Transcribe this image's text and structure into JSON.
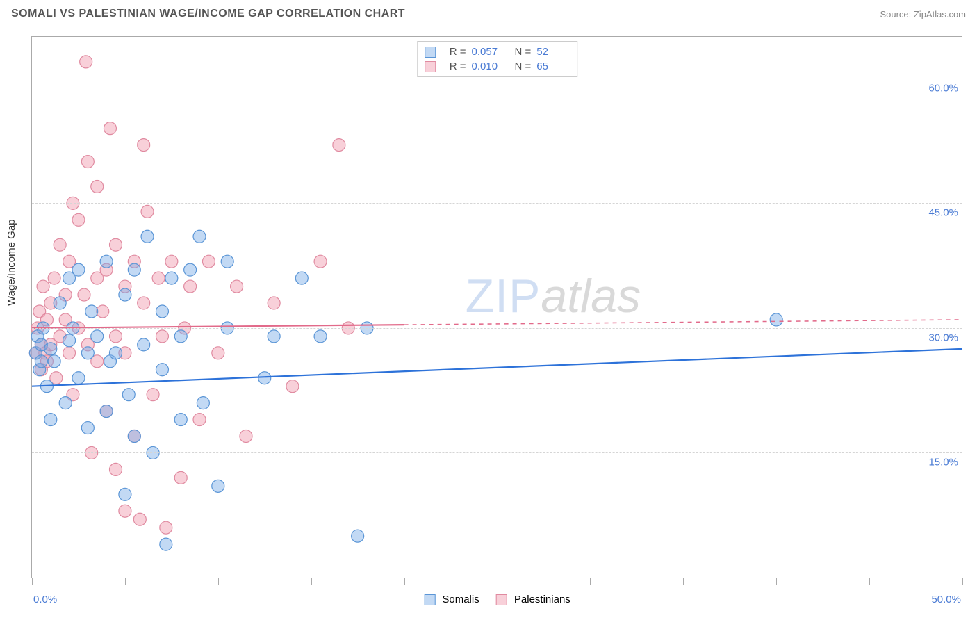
{
  "title": "SOMALI VS PALESTINIAN WAGE/INCOME GAP CORRELATION CHART",
  "source": "Source: ZipAtlas.com",
  "ylabel": "Wage/Income Gap",
  "watermark": {
    "part1": "ZIP",
    "part2": "atlas"
  },
  "colors": {
    "series_a_fill": "rgba(120,170,230,0.45)",
    "series_a_stroke": "#5a95d6",
    "series_b_fill": "rgba(240,150,170,0.45)",
    "series_b_stroke": "#e08aa0",
    "line_a": "#2d72d9",
    "line_b": "#e26a8a",
    "axis_value": "#4a7bd4",
    "grid": "#d5d5d5",
    "border": "#aaaaaa",
    "background": "#ffffff"
  },
  "axes": {
    "xlim": [
      0,
      50
    ],
    "ylim": [
      0,
      65
    ],
    "xticks_pct": [
      0,
      10,
      20,
      30,
      40,
      50,
      60,
      70,
      80,
      90,
      100
    ],
    "yticks": [
      {
        "value": 15,
        "label": "15.0%"
      },
      {
        "value": 30,
        "label": "30.0%"
      },
      {
        "value": 45,
        "label": "45.0%"
      },
      {
        "value": 60,
        "label": "60.0%"
      }
    ],
    "x_min_label": "0.0%",
    "x_max_label": "50.0%"
  },
  "top_legend": {
    "rows": [
      {
        "swatch": "a",
        "r_label": "R =",
        "r": "0.057",
        "n_label": "N =",
        "n": "52"
      },
      {
        "swatch": "b",
        "r_label": "R =",
        "r": "0.010",
        "n_label": "N =",
        "n": "65"
      }
    ]
  },
  "bottom_legend": {
    "a_label": "Somalis",
    "b_label": "Palestinians"
  },
  "regression": {
    "a": {
      "y_at_x0": 23.0,
      "y_at_x50": 27.5,
      "solid_until_x": 50
    },
    "b": {
      "y_at_x0": 30.0,
      "y_at_x50": 31.0,
      "solid_until_x": 20
    }
  },
  "marker": {
    "radius": 9,
    "stroke_width": 1.2
  },
  "line_width": 2.2,
  "series_a_points": [
    [
      0.2,
      27
    ],
    [
      0.3,
      29
    ],
    [
      0.4,
      25
    ],
    [
      0.5,
      26
    ],
    [
      0.5,
      28
    ],
    [
      0.6,
      30
    ],
    [
      0.8,
      23
    ],
    [
      1.0,
      27.5
    ],
    [
      1.0,
      19
    ],
    [
      1.2,
      26
    ],
    [
      1.5,
      33
    ],
    [
      1.8,
      21
    ],
    [
      2.0,
      28.5
    ],
    [
      2.0,
      36
    ],
    [
      2.2,
      30
    ],
    [
      2.5,
      37
    ],
    [
      2.5,
      24
    ],
    [
      3.0,
      18
    ],
    [
      3.0,
      27
    ],
    [
      3.2,
      32
    ],
    [
      3.5,
      29
    ],
    [
      4.0,
      38
    ],
    [
      4.0,
      20
    ],
    [
      4.2,
      26
    ],
    [
      4.5,
      27
    ],
    [
      5.0,
      10
    ],
    [
      5.0,
      34
    ],
    [
      5.2,
      22
    ],
    [
      5.5,
      37
    ],
    [
      5.5,
      17
    ],
    [
      6.0,
      28
    ],
    [
      6.2,
      41
    ],
    [
      6.5,
      15
    ],
    [
      7.0,
      25
    ],
    [
      7.0,
      32
    ],
    [
      7.2,
      4
    ],
    [
      7.5,
      36
    ],
    [
      8.0,
      19
    ],
    [
      8.0,
      29
    ],
    [
      8.5,
      37
    ],
    [
      9.0,
      41
    ],
    [
      9.2,
      21
    ],
    [
      10.0,
      11
    ],
    [
      10.5,
      30
    ],
    [
      10.5,
      38
    ],
    [
      12.5,
      24
    ],
    [
      13.0,
      29
    ],
    [
      14.5,
      36
    ],
    [
      15.5,
      29
    ],
    [
      17.5,
      5
    ],
    [
      18.0,
      30
    ],
    [
      40.0,
      31
    ]
  ],
  "series_b_points": [
    [
      0.2,
      27
    ],
    [
      0.3,
      30
    ],
    [
      0.4,
      32
    ],
    [
      0.5,
      25
    ],
    [
      0.5,
      28
    ],
    [
      0.6,
      35
    ],
    [
      0.7,
      27
    ],
    [
      0.8,
      31
    ],
    [
      0.8,
      26
    ],
    [
      1.0,
      28
    ],
    [
      1.0,
      33
    ],
    [
      1.2,
      36
    ],
    [
      1.3,
      24
    ],
    [
      1.5,
      29
    ],
    [
      1.5,
      40
    ],
    [
      1.8,
      31
    ],
    [
      1.8,
      34
    ],
    [
      2.0,
      27
    ],
    [
      2.0,
      38
    ],
    [
      2.2,
      45
    ],
    [
      2.2,
      22
    ],
    [
      2.5,
      30
    ],
    [
      2.5,
      43
    ],
    [
      2.8,
      34
    ],
    [
      2.9,
      62
    ],
    [
      3.0,
      28
    ],
    [
      3.0,
      50
    ],
    [
      3.2,
      15
    ],
    [
      3.5,
      36
    ],
    [
      3.5,
      26
    ],
    [
      3.5,
      47
    ],
    [
      3.8,
      32
    ],
    [
      4.0,
      20
    ],
    [
      4.0,
      37
    ],
    [
      4.2,
      54
    ],
    [
      4.5,
      29
    ],
    [
      4.5,
      40
    ],
    [
      4.5,
      13
    ],
    [
      5.0,
      35
    ],
    [
      5.0,
      8
    ],
    [
      5.0,
      27
    ],
    [
      5.5,
      38
    ],
    [
      5.5,
      17
    ],
    [
      5.8,
      7
    ],
    [
      6.0,
      33
    ],
    [
      6.0,
      52
    ],
    [
      6.2,
      44
    ],
    [
      6.5,
      22
    ],
    [
      6.8,
      36
    ],
    [
      7.0,
      29
    ],
    [
      7.2,
      6
    ],
    [
      7.5,
      38
    ],
    [
      8.0,
      12
    ],
    [
      8.2,
      30
    ],
    [
      8.5,
      35
    ],
    [
      9.0,
      19
    ],
    [
      9.5,
      38
    ],
    [
      10.0,
      27
    ],
    [
      11.0,
      35
    ],
    [
      11.5,
      17
    ],
    [
      13.0,
      33
    ],
    [
      14.0,
      23
    ],
    [
      15.5,
      38
    ],
    [
      16.5,
      52
    ],
    [
      17.0,
      30
    ]
  ]
}
